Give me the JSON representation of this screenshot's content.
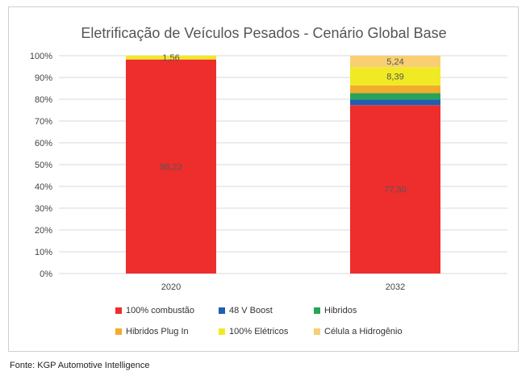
{
  "chart_data": {
    "type": "bar",
    "stacked": true,
    "title": "Eletrificação de Veículos Pesados - Cenário Global Base",
    "categories": [
      "2020",
      "2032"
    ],
    "y_ticks": [
      "0%",
      "10%",
      "20%",
      "30%",
      "40%",
      "50%",
      "60%",
      "70%",
      "80%",
      "90%",
      "100%"
    ],
    "ylim": [
      0,
      100
    ],
    "grid": true,
    "legend_position": "bottom",
    "series": [
      {
        "name": "100% combustão",
        "color": "#ee2d2d",
        "values": [
          98.22,
          77.3
        ],
        "labels": [
          "98,22",
          "77,30"
        ]
      },
      {
        "name": "48 V Boost",
        "color": "#1f5fb3",
        "values": [
          0,
          2.5
        ],
        "labels": [
          "",
          ""
        ]
      },
      {
        "name": "Hibridos",
        "color": "#2aa35a",
        "values": [
          0,
          3.0
        ],
        "labels": [
          "",
          ""
        ]
      },
      {
        "name": "Hibridos Plug In",
        "color": "#f2ac2c",
        "values": [
          0.22,
          3.57
        ],
        "labels": [
          "",
          ""
        ]
      },
      {
        "name": "100% Elétricos",
        "color": "#f0ea24",
        "values": [
          1.56,
          8.39
        ],
        "labels": [
          "1,56",
          "8,39"
        ]
      },
      {
        "name": "Célula a Hidrogênio",
        "color": "#f8cf73",
        "values": [
          0,
          5.24
        ],
        "labels": [
          "",
          "5,24"
        ]
      }
    ]
  },
  "source": "Fonte: KGP Automotive Intelligence"
}
